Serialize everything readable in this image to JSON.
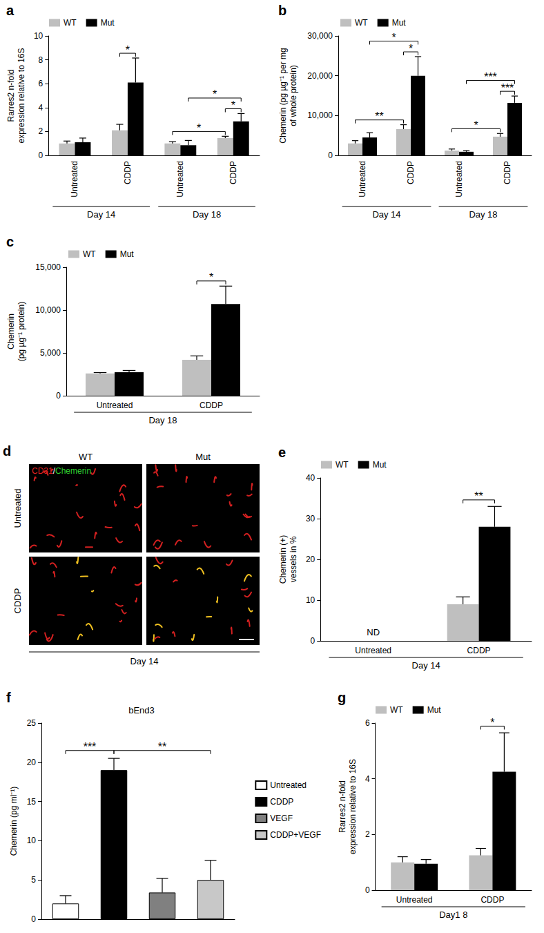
{
  "chart_data": [
    {
      "panel": "a",
      "type": "bar",
      "y_label": "Rarres2 n-fold\nexpression relative to 16S",
      "categories": [
        "Untreated",
        "CDDP",
        "Untreated",
        "CDDP"
      ],
      "groups": [
        {
          "label": "Day 14",
          "categories": [
            0,
            1
          ]
        },
        {
          "label": "Day 18",
          "categories": [
            2,
            3
          ]
        }
      ],
      "series": [
        {
          "name": "WT",
          "color": "#bfbfbf",
          "values": [
            1.0,
            2.1,
            1.0,
            1.45
          ],
          "errors": [
            0.2,
            0.5,
            0.15,
            0.15
          ]
        },
        {
          "name": "Mut",
          "color": "#000000",
          "values": [
            1.1,
            6.1,
            0.85,
            2.85
          ],
          "errors": [
            0.35,
            2.05,
            0.4,
            0.65
          ]
        }
      ],
      "significance": [
        {
          "from": [
            1,
            "WT"
          ],
          "to": [
            1,
            "Mut"
          ],
          "label": "*"
        },
        {
          "from": [
            2,
            "WT"
          ],
          "to": [
            3,
            "WT"
          ],
          "label": "*"
        },
        {
          "from": [
            3,
            "WT"
          ],
          "to": [
            3,
            "Mut"
          ],
          "label": "*"
        },
        {
          "from": [
            2,
            "Mut"
          ],
          "to": [
            3,
            "Mut"
          ],
          "label": "*"
        }
      ],
      "ylim": [
        0,
        10
      ],
      "yticks": [
        0,
        2,
        4,
        6,
        8,
        10
      ],
      "grid": false,
      "legend": "upper left"
    },
    {
      "panel": "b",
      "type": "bar",
      "y_label": "Chemerin (pg µg⁻¹ per mg\nof whole protein)",
      "categories": [
        "Untreated",
        "CDDP",
        "Untreated",
        "CDDP"
      ],
      "groups": [
        {
          "label": "Day 14",
          "categories": [
            0,
            1
          ]
        },
        {
          "label": "Day 18",
          "categories": [
            2,
            3
          ]
        }
      ],
      "series": [
        {
          "name": "WT",
          "color": "#bfbfbf",
          "values": [
            3000,
            6600,
            1200,
            4700
          ],
          "errors": [
            700,
            1100,
            400,
            800
          ]
        },
        {
          "name": "Mut",
          "color": "#000000",
          "values": [
            4500,
            20000,
            900,
            13200
          ],
          "errors": [
            1200,
            4800,
            300,
            1700
          ]
        }
      ],
      "significance": [
        {
          "from": [
            0,
            "WT"
          ],
          "to": [
            1,
            "WT"
          ],
          "label": "**"
        },
        {
          "from": [
            1,
            "WT"
          ],
          "to": [
            1,
            "Mut"
          ],
          "label": "*"
        },
        {
          "from": [
            0,
            "Mut"
          ],
          "to": [
            1,
            "Mut"
          ],
          "label": "*"
        },
        {
          "from": [
            2,
            "WT"
          ],
          "to": [
            3,
            "WT"
          ],
          "label": "*"
        },
        {
          "from": [
            3,
            "WT"
          ],
          "to": [
            3,
            "Mut"
          ],
          "label": "***"
        },
        {
          "from": [
            2,
            "Mut"
          ],
          "to": [
            3,
            "Mut"
          ],
          "label": "***"
        }
      ],
      "ylim": [
        0,
        30000
      ],
      "yticks": [
        0,
        {
          "value": 10000,
          "label": "10,000"
        },
        {
          "value": 20000,
          "label": "20,000"
        },
        {
          "value": 30000,
          "label": "30,000"
        }
      ],
      "grid": false,
      "legend": "upper left"
    },
    {
      "panel": "c",
      "type": "bar",
      "y_label": "Chemerin\n(pg µg⁻¹ protein)",
      "categories": [
        "Untreated",
        "CDDP"
      ],
      "groups": [
        {
          "label": "Day 18",
          "categories": [
            0,
            1
          ]
        }
      ],
      "series": [
        {
          "name": "WT",
          "color": "#bfbfbf",
          "values": [
            2600,
            4200
          ],
          "errors": [
            100,
            450
          ]
        },
        {
          "name": "Mut",
          "color": "#000000",
          "values": [
            2750,
            10700
          ],
          "errors": [
            200,
            2100
          ]
        }
      ],
      "significance": [
        {
          "from": [
            1,
            "WT"
          ],
          "to": [
            1,
            "Mut"
          ],
          "label": "*"
        }
      ],
      "ylim": [
        0,
        15000
      ],
      "yticks": [
        0,
        {
          "value": 5000,
          "label": "5,000"
        },
        {
          "value": 10000,
          "label": "10,000"
        },
        {
          "value": 15000,
          "label": "15,000"
        }
      ],
      "grid": false,
      "legend": "upper left"
    },
    {
      "panel": "e",
      "type": "bar",
      "y_label": "Chemerin (+)\nvessels in %",
      "categories": [
        "Untreated",
        "CDDP"
      ],
      "groups": [
        {
          "label": "Day 14",
          "categories": [
            0,
            1
          ]
        }
      ],
      "series": [
        {
          "name": "WT",
          "color": "#bfbfbf",
          "values": [
            null,
            9.0
          ],
          "errors": [
            null,
            1.8
          ]
        },
        {
          "name": "Mut",
          "color": "#000000",
          "values": [
            null,
            28.0
          ],
          "errors": [
            null,
            5.0
          ]
        }
      ],
      "notes": [
        {
          "category": 0,
          "label": "ND"
        }
      ],
      "significance": [
        {
          "from": [
            1,
            "WT"
          ],
          "to": [
            1,
            "Mut"
          ],
          "label": "**"
        }
      ],
      "ylim": [
        0,
        40
      ],
      "yticks": [
        0,
        10,
        20,
        30,
        40
      ],
      "grid": false,
      "legend": "upper left"
    },
    {
      "panel": "f",
      "type": "bar",
      "title": "bEnd3",
      "y_label": "Chemerin (pg ml⁻¹)",
      "categories": [
        "Untreated",
        "CDDP",
        "VEGF",
        "CDDP+VEGF"
      ],
      "values": [
        2.0,
        19.0,
        3.4,
        5.0
      ],
      "errors": [
        1.0,
        1.5,
        1.8,
        2.5
      ],
      "colors": [
        "#ffffff",
        "#000000",
        "#808080",
        "#c8c8c8"
      ],
      "significance": [
        {
          "from": 0,
          "to": 1,
          "label": "***"
        },
        {
          "from": 1,
          "to": 3,
          "label": "**"
        }
      ],
      "ylim": [
        0,
        25
      ],
      "yticks": [
        0,
        5,
        10,
        15,
        20,
        25
      ],
      "grid": false,
      "legend": "right",
      "tick_labels": "y"
    },
    {
      "panel": "g",
      "type": "bar",
      "y_label": "Rarres2 n-fold\nexpression relative to 16S",
      "categories": [
        "Untreated",
        "CDDP"
      ],
      "groups": [
        {
          "label": "Day1 8",
          "categories": [
            0,
            1
          ]
        }
      ],
      "series": [
        {
          "name": "WT",
          "color": "#bfbfbf",
          "values": [
            1.0,
            1.25
          ],
          "errors": [
            0.2,
            0.25
          ]
        },
        {
          "name": "Mut",
          "color": "#000000",
          "values": [
            0.95,
            4.25
          ],
          "errors": [
            0.15,
            1.4
          ]
        }
      ],
      "significance": [
        {
          "from": [
            1,
            "WT"
          ],
          "to": [
            1,
            "Mut"
          ],
          "label": "*"
        }
      ],
      "ylim": [
        0,
        6
      ],
      "yticks": [
        0,
        2,
        4,
        6
      ],
      "grid": false,
      "legend": "upper left"
    }
  ],
  "image_panel": {
    "panel": "d",
    "stain": "CD31/Chemerin",
    "columns": [
      "WT",
      "Mut"
    ],
    "rows": [
      "Untreated",
      "CDDP"
    ],
    "group": "Day 14"
  }
}
